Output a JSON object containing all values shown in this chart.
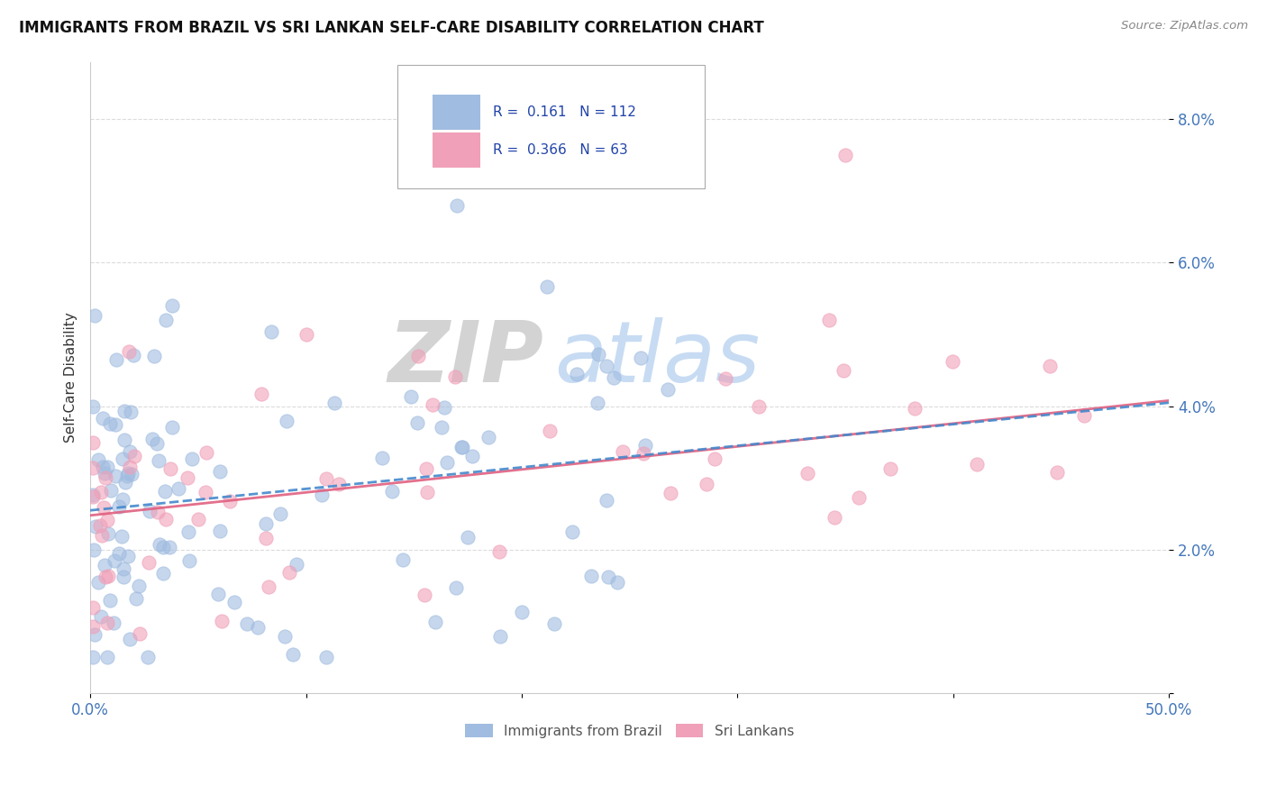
{
  "title": "IMMIGRANTS FROM BRAZIL VS SRI LANKAN SELF-CARE DISABILITY CORRELATION CHART",
  "source_text": "Source: ZipAtlas.com",
  "ylabel": "Self-Care Disability",
  "xlim": [
    0.0,
    0.5
  ],
  "ylim": [
    0.0,
    0.088
  ],
  "yticks": [
    0.0,
    0.02,
    0.04,
    0.06,
    0.08
  ],
  "ytick_labels": [
    "",
    "2.0%",
    "4.0%",
    "6.0%",
    "8.0%"
  ],
  "xticks": [
    0.0,
    0.1,
    0.2,
    0.3,
    0.4,
    0.5
  ],
  "xtick_labels": [
    "0.0%",
    "",
    "",
    "",
    "",
    "50.0%"
  ],
  "brazil_color": "#a0bce0",
  "srilanka_color": "#f0a0b8",
  "brazil_line_color": "#4488cc",
  "srilanka_line_color": "#e06080",
  "r_brazil": 0.161,
  "n_brazil": 112,
  "r_srilanka": 0.366,
  "n_srilanka": 63,
  "watermark_zip": "ZIP",
  "watermark_atlas": "atlas",
  "brazil_trend_start_y": 0.0255,
  "brazil_trend_end_y": 0.0405,
  "srilanka_trend_start_y": 0.0248,
  "srilanka_trend_end_y": 0.0408
}
